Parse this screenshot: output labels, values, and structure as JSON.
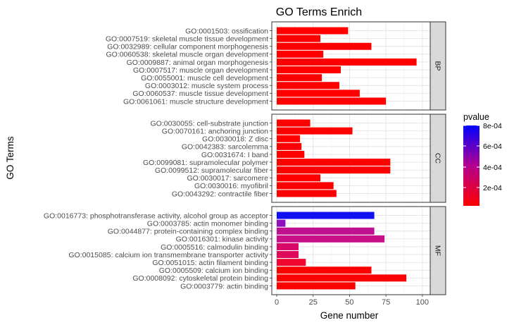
{
  "chart_data": {
    "type": "bar",
    "orientation": "horizontal",
    "title": "GO Terms Enrich",
    "xlabel": "Gene number",
    "ylabel": "GO Terms",
    "xlim": [
      0,
      102
    ],
    "x_ticks": [
      "0",
      "25",
      "50",
      "75",
      "100"
    ],
    "grid": true,
    "legend": {
      "title": "pvalue",
      "placement": "right",
      "ticks": [
        "8e-04",
        "6e-04",
        "4e-04",
        "2e-04"
      ],
      "low_color": "#ff0000",
      "high_color": "#0000ff"
    },
    "facets": [
      {
        "label": "BP",
        "terms": [
          {
            "name": "GO:0001503: ossification",
            "count": 49,
            "color": "#ff0000"
          },
          {
            "name": "GO:0007519: skeletal muscle tissue development",
            "count": 30,
            "color": "#ff0000"
          },
          {
            "name": "GO:0032989: cellular component morphogenesis",
            "count": 65,
            "color": "#ff0000"
          },
          {
            "name": "GO:0060538: skeletal muscle organ development",
            "count": 32,
            "color": "#ff0000"
          },
          {
            "name": "GO:0009887: animal organ morphogenesis",
            "count": 96,
            "color": "#ff0000"
          },
          {
            "name": "GO:0007517: muscle organ development",
            "count": 44,
            "color": "#ff0000"
          },
          {
            "name": "GO:0055001: muscle cell development",
            "count": 31,
            "color": "#ff0000"
          },
          {
            "name": "GO:0003012: muscle system process",
            "count": 43,
            "color": "#ff0000"
          },
          {
            "name": "GO:0060537: muscle tissue development",
            "count": 57,
            "color": "#ff0000"
          },
          {
            "name": "GO:0061061: muscle structure development",
            "count": 75,
            "color": "#ff0000"
          }
        ]
      },
      {
        "label": "CC",
        "terms": [
          {
            "name": "GO:0030055: cell-substrate junction",
            "count": 23,
            "color": "#ff0000"
          },
          {
            "name": "GO:0070161: anchoring junction",
            "count": 52,
            "color": "#ff0000"
          },
          {
            "name": "GO:0030018: Z disc",
            "count": 16,
            "color": "#ff0000"
          },
          {
            "name": "GO:0042383: sarcolemma",
            "count": 17,
            "color": "#ff0000"
          },
          {
            "name": "GO:0031674: I band",
            "count": 19,
            "color": "#ff0000"
          },
          {
            "name": "GO:0099081: supramolecular polymer",
            "count": 78,
            "color": "#ff0000"
          },
          {
            "name": "GO:0099512: supramolecular fiber",
            "count": 78,
            "color": "#ff0000"
          },
          {
            "name": "GO:0030017: sarcomere",
            "count": 30,
            "color": "#ff0000"
          },
          {
            "name": "GO:0030016: myofibril",
            "count": 39,
            "color": "#ff0000"
          },
          {
            "name": "GO:0043292: contractile fiber",
            "count": 41,
            "color": "#ff0000"
          }
        ]
      },
      {
        "label": "MF",
        "terms": [
          {
            "name": "GO:0016773: phosphotransferase activity, alcohol group as acceptor",
            "count": 67,
            "color": "#1010f0"
          },
          {
            "name": "GO:0003785: actin monomer binding",
            "count": 6,
            "color": "#9010c0"
          },
          {
            "name": "GO:0044877: protein-containing complex binding",
            "count": 67,
            "color": "#c01090"
          },
          {
            "name": "GO:0016301: kinase activity",
            "count": 74,
            "color": "#c81088"
          },
          {
            "name": "GO:0005516: calmodulin binding",
            "count": 15,
            "color": "#d80868"
          },
          {
            "name": "GO:0015085: calcium ion transmembrane transporter activity",
            "count": 15,
            "color": "#e00858"
          },
          {
            "name": "GO:0051015: actin filament binding",
            "count": 20,
            "color": "#f00430"
          },
          {
            "name": "GO:0005509: calcium ion binding",
            "count": 65,
            "color": "#ff0000"
          },
          {
            "name": "GO:0008092: cytoskeletal protein binding",
            "count": 89,
            "color": "#ff0000"
          },
          {
            "name": "GO:0003779: actin binding",
            "count": 54,
            "color": "#ff0000"
          }
        ]
      }
    ]
  }
}
